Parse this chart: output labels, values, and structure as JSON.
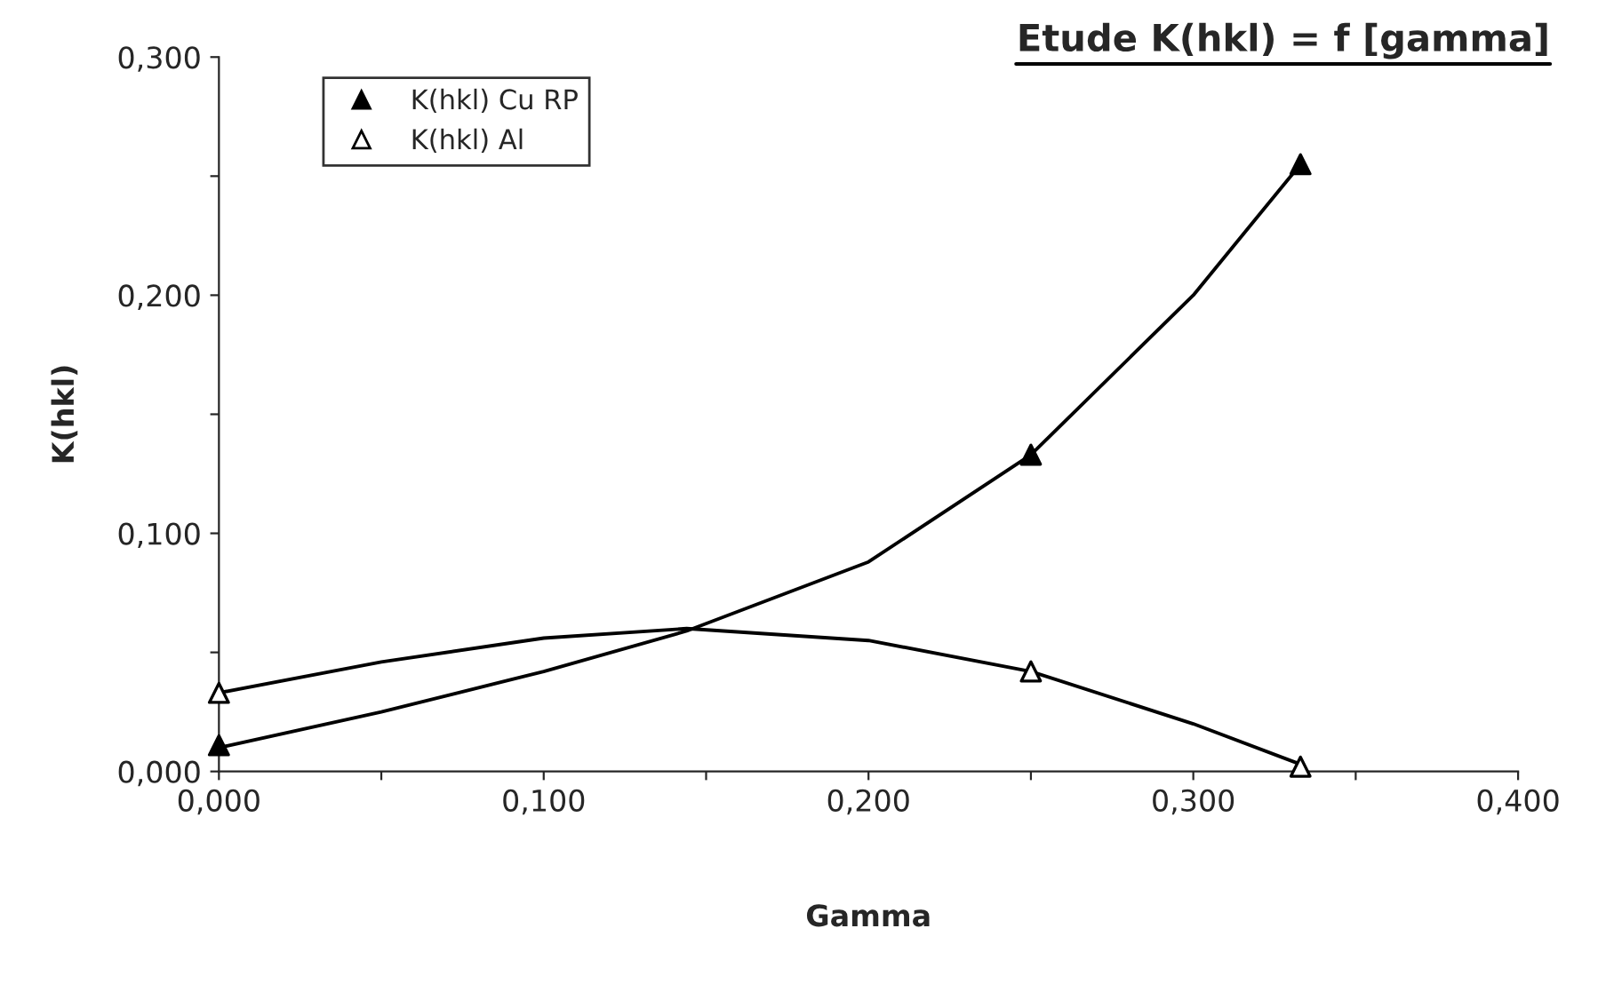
{
  "chart_data": {
    "type": "scatter",
    "title": "Etude K(hkl) = f [gamma]",
    "xlabel": "Gamma",
    "ylabel": "K(hkl)",
    "xlim": [
      0,
      0.4
    ],
    "ylim": [
      0,
      0.3
    ],
    "xticks": [
      {
        "value": 0,
        "label": "0,000"
      },
      {
        "value": 0.05,
        "label": null
      },
      {
        "value": 0.1,
        "label": "0,100"
      },
      {
        "value": 0.15,
        "label": null
      },
      {
        "value": 0.2,
        "label": "0,200"
      },
      {
        "value": 0.25,
        "label": null
      },
      {
        "value": 0.3,
        "label": "0,300"
      },
      {
        "value": 0.35,
        "label": null
      },
      {
        "value": 0.4,
        "label": "0,400"
      }
    ],
    "yticks": [
      {
        "value": 0,
        "label": "0,000"
      },
      {
        "value": 0.05,
        "label": null
      },
      {
        "value": 0.1,
        "label": "0,100"
      },
      {
        "value": 0.15,
        "label": null
      },
      {
        "value": 0.2,
        "label": "0,200"
      },
      {
        "value": 0.25,
        "label": null
      },
      {
        "value": 0.3,
        "label": "0,300"
      }
    ],
    "grid": false,
    "legend": "top left",
    "series": [
      {
        "name": "K(hkl) Cu RP",
        "marker": "triangle",
        "color": "#000000",
        "x": [
          0,
          0.25,
          0.333
        ],
        "values": [
          0.011,
          0.133,
          0.255
        ]
      },
      {
        "name": "K(hkl) Al",
        "marker": "triangle",
        "color": "#ffffff",
        "x": [
          0,
          0.25,
          0.333
        ],
        "values": [
          0.033,
          0.042,
          0.002
        ]
      },
      {
        "type": "line",
        "color": "#000000",
        "marker": "none",
        "x": [
          0,
          0.05,
          0.1,
          0.144,
          0.2,
          0.25,
          0.3,
          0.333
        ],
        "values": [
          0.01,
          0.025,
          0.042,
          0.059,
          0.088,
          0.133,
          0.2,
          0.255
        ]
      },
      {
        "type": "line",
        "color": "#000000",
        "marker": "none",
        "x": [
          0,
          0.05,
          0.1,
          0.144,
          0.2,
          0.25,
          0.3,
          0.333
        ],
        "values": [
          0.033,
          0.046,
          0.056,
          0.06,
          0.055,
          0.042,
          0.02,
          0.003
        ]
      }
    ]
  }
}
